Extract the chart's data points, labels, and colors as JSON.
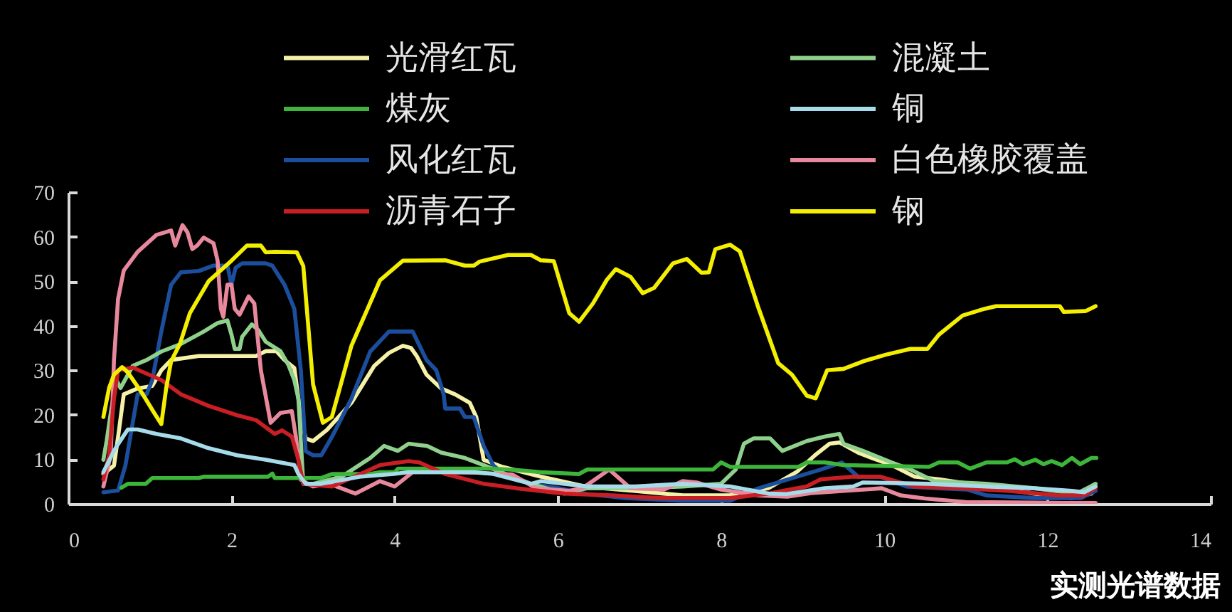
{
  "chart_data": {
    "type": "line",
    "annotations": [
      "实测光谱数据"
    ],
    "xlim": [
      0,
      14
    ],
    "xticks": [
      0,
      2,
      4,
      6,
      8,
      10,
      12,
      14
    ],
    "ylim": [
      0,
      70
    ],
    "yticks": [
      0,
      10,
      20,
      30,
      40,
      50,
      60,
      70
    ],
    "legend": "top",
    "line_style": "solid",
    "series": [
      {
        "name": "光滑红瓦",
        "color": "#f6f1a8",
        "x": [
          0.43,
          0.56,
          0.61,
          0.68,
          0.85,
          1.03,
          1.14,
          1.26,
          1.6,
          2.0,
          2.3,
          2.42,
          2.55,
          2.65,
          2.77,
          2.85,
          2.91,
          3.0,
          3.17,
          3.47,
          3.75,
          3.93,
          4.1,
          4.2,
          4.27,
          4.39,
          4.57,
          4.74,
          4.92,
          5.0,
          5.09,
          5.32,
          5.79,
          6.36,
          6.95,
          7.53,
          8.11,
          8.58,
          8.93,
          9.15,
          9.33,
          9.45,
          9.68,
          9.85,
          10.09,
          10.37,
          10.67,
          11.25,
          11.84,
          12.3,
          12.54
        ],
        "values": [
          6.7,
          8.6,
          15,
          24.6,
          25.9,
          26.5,
          30,
          32.3,
          33.2,
          33.2,
          33.2,
          34.3,
          34.3,
          32.3,
          30.5,
          19.5,
          14.7,
          14.1,
          16.6,
          22.7,
          31,
          33.9,
          35.5,
          35,
          33.2,
          29,
          25.9,
          24.6,
          22.7,
          19.5,
          9.9,
          8.3,
          6.1,
          3.8,
          2.9,
          1.9,
          1.9,
          3.5,
          7.2,
          10.9,
          13.5,
          13.8,
          11.5,
          10.3,
          8.7,
          6.1,
          5.5,
          3.9,
          2.3,
          1.3,
          2.3
        ]
      },
      {
        "name": "风化红瓦",
        "color": "#1b4f9e",
        "x": [
          0.43,
          0.61,
          0.7,
          0.76,
          0.85,
          0.96,
          1.03,
          1.14,
          1.26,
          1.38,
          1.6,
          1.78,
          1.95,
          2.0,
          2.05,
          2.13,
          2.42,
          2.5,
          2.65,
          2.77,
          2.85,
          2.91,
          3.0,
          3.1,
          3.23,
          3.47,
          3.7,
          3.93,
          4.04,
          4.22,
          4.39,
          4.51,
          4.6,
          4.62,
          4.8,
          4.86,
          4.97,
          5.09,
          5.21,
          5.32,
          5.67,
          6.01,
          6.36,
          6.83,
          7.53,
          8.11,
          8.46,
          8.93,
          9.22,
          9.48,
          9.68,
          9.95,
          10.27,
          10.67,
          11.02,
          11.25,
          11.84,
          12.41,
          12.59
        ],
        "values": [
          2.6,
          3,
          8.6,
          15,
          24.6,
          24.6,
          27.8,
          38.7,
          49.2,
          52,
          52.3,
          53.5,
          53.5,
          49.2,
          53,
          54,
          54,
          53.5,
          49.2,
          43.8,
          30,
          11.8,
          10.9,
          10.9,
          15,
          23.6,
          34.2,
          38.7,
          38.7,
          38.7,
          32.3,
          30,
          24.6,
          21.4,
          21.4,
          19.5,
          19.5,
          13,
          8.6,
          7,
          4.5,
          3.5,
          2.2,
          1.3,
          0.7,
          0.7,
          3.5,
          6.1,
          7.7,
          9.3,
          6.1,
          6.1,
          3.9,
          3.5,
          3.2,
          1.9,
          1.3,
          1.3,
          2.9
        ]
      },
      {
        "name": "混凝土",
        "color": "#8fd08c",
        "x": [
          0.43,
          0.47,
          0.52,
          0.59,
          0.64,
          0.7,
          0.79,
          0.96,
          1.14,
          1.38,
          1.66,
          1.83,
          1.95,
          2.0,
          2.04,
          2.1,
          2.13,
          2.25,
          2.33,
          2.42,
          2.6,
          2.7,
          2.77,
          2.82,
          2.88,
          3.0,
          3.35,
          3.7,
          3.87,
          4.04,
          4.17,
          4.4,
          4.57,
          4.86,
          5.09,
          5.44,
          5.67,
          6.08,
          6.36,
          6.95,
          7.53,
          8.0,
          8.18,
          8.28,
          8.4,
          8.6,
          8.75,
          8.9,
          9.05,
          9.27,
          9.45,
          9.5,
          9.74,
          10.09,
          10.32,
          10.61,
          11.25,
          11.84,
          12.36,
          12.59
        ],
        "values": [
          9.9,
          14.1,
          20.4,
          27.8,
          26,
          28,
          31,
          32.3,
          34.2,
          35.9,
          38.7,
          40.6,
          41.2,
          38,
          34.8,
          34.8,
          37.5,
          40.3,
          39,
          36.4,
          34.3,
          31.1,
          27.8,
          23.6,
          4.5,
          4.5,
          6.1,
          10.3,
          13,
          11.9,
          13.5,
          13,
          11.5,
          10.3,
          8.7,
          6.1,
          4.5,
          2.3,
          3.5,
          3.5,
          3.9,
          4.5,
          7.7,
          13.5,
          14.7,
          14.7,
          11.9,
          13,
          14.1,
          15.1,
          15.7,
          13.5,
          11.9,
          9.3,
          7.7,
          5.1,
          4.5,
          3.5,
          2.3,
          4.5
        ]
      },
      {
        "name": "白色橡胶覆盖",
        "color": "#e8889c",
        "x": [
          0.43,
          0.52,
          0.56,
          0.61,
          0.68,
          0.85,
          1.08,
          1.26,
          1.31,
          1.4,
          1.46,
          1.52,
          1.58,
          1.66,
          1.78,
          1.83,
          1.87,
          1.9,
          1.95,
          2.0,
          2.04,
          2.1,
          2.21,
          2.28,
          2.36,
          2.48,
          2.6,
          2.74,
          2.79,
          2.85,
          3.0,
          3.2,
          3.52,
          3.82,
          4.0,
          4.22,
          4.6,
          5.0,
          5.44,
          5.73,
          6.14,
          6.3,
          6.63,
          6.89,
          7.3,
          7.53,
          7.7,
          8.0,
          8.46,
          8.81,
          9.1,
          9.74,
          9.97,
          10.2,
          10.5,
          11.0,
          11.6,
          12.2,
          12.59
        ],
        "values": [
          3.9,
          10.9,
          32.3,
          46,
          52.4,
          56.6,
          60.4,
          61.4,
          58,
          62.6,
          61,
          57.2,
          58,
          59.8,
          58.5,
          54.6,
          43.8,
          42,
          49.2,
          49.2,
          43.8,
          42.5,
          46.6,
          45,
          30,
          18.2,
          20.4,
          20.8,
          15,
          5.4,
          3.9,
          4.5,
          2.3,
          5.1,
          3.9,
          7.1,
          7.1,
          7,
          6.6,
          3.5,
          2.9,
          3.5,
          7.7,
          3.5,
          3.2,
          5.1,
          4.8,
          3.2,
          1.9,
          1.6,
          2.4,
          3.2,
          3.5,
          1.9,
          1.2,
          0.4,
          0.3,
          0.2,
          0.2
        ]
      },
      {
        "name": "煤灰",
        "color": "#3db53a",
        "x": [
          0.65,
          0.73,
          0.95,
          1.03,
          1.6,
          1.66,
          2.45,
          2.5,
          2.53,
          3.1,
          3.23,
          3.7,
          3.82,
          4.0,
          4.04,
          5.21,
          5.5,
          5.79,
          6.26,
          6.36,
          7.9,
          8.0,
          8.11,
          8.95,
          9.05,
          9.27,
          9.5,
          10.55,
          10.67,
          10.9,
          11.05,
          11.25,
          11.5,
          11.6,
          11.7,
          11.85,
          11.95,
          12.05,
          12.18,
          12.3,
          12.4,
          12.54,
          12.6
        ],
        "values": [
          3.6,
          4.5,
          4.5,
          5.8,
          5.8,
          6.1,
          6.1,
          6.8,
          5.8,
          5.8,
          6.7,
          6.7,
          7.1,
          7.1,
          7.9,
          7.9,
          7.6,
          7.1,
          6.7,
          7.7,
          7.7,
          9.3,
          8.3,
          8.3,
          9.3,
          9.3,
          8.7,
          8.3,
          9.3,
          9.3,
          7.9,
          9.3,
          9.3,
          10,
          8.9,
          9.9,
          8.9,
          9.6,
          8.7,
          10.3,
          8.9,
          10.3,
          10.3
        ]
      },
      {
        "name": "沥青石子",
        "color": "#c81e24",
        "x": [
          0.43,
          0.5,
          0.56,
          0.61,
          0.79,
          1.14,
          1.38,
          1.72,
          2.07,
          2.3,
          2.53,
          2.62,
          2.74,
          2.82,
          2.88,
          3.23,
          3.58,
          3.82,
          4.17,
          4.3,
          4.62,
          5.09,
          5.49,
          6.08,
          6.66,
          7.24,
          8.11,
          8.58,
          9.05,
          9.22,
          9.62,
          9.95,
          10.37,
          10.96,
          11.54,
          12.12,
          12.45,
          12.59
        ],
        "values": [
          5.5,
          10.9,
          23.6,
          30,
          30.6,
          27.8,
          24.6,
          22,
          19.9,
          18.8,
          15.7,
          16.5,
          15.1,
          9.9,
          4.5,
          3.9,
          6.7,
          8.7,
          9.6,
          9.3,
          6.7,
          4.5,
          3.5,
          2.3,
          1.9,
          1.3,
          1.3,
          2.3,
          3.9,
          5.5,
          6.1,
          6.1,
          3.9,
          3.5,
          2.9,
          1.9,
          1.9,
          3.5
        ]
      },
      {
        "name": "铜",
        "color": "#a6dbe9",
        "x": [
          0.43,
          0.56,
          0.61,
          0.73,
          0.85,
          1.08,
          1.38,
          1.72,
          2.07,
          2.42,
          2.77,
          2.82,
          2.91,
          3.1,
          3.58,
          3.99,
          4.17,
          4.97,
          5.21,
          5.67,
          5.79,
          6.36,
          6.95,
          7.53,
          8.11,
          8.58,
          8.8,
          9.27,
          9.62,
          9.74,
          10.55,
          11.25,
          11.84,
          12.3,
          12.45,
          12.59
        ],
        "values": [
          7.1,
          11.9,
          13.4,
          16.7,
          16.7,
          15.7,
          14.7,
          12.5,
          10.9,
          9.9,
          8.7,
          6.7,
          4.5,
          4.5,
          6.1,
          6.7,
          7.1,
          7.1,
          6.7,
          4.5,
          5.1,
          3.9,
          3.9,
          4.5,
          3.9,
          2.3,
          2.2,
          3.5,
          3.9,
          4.8,
          4.5,
          3.9,
          3.5,
          2.9,
          2.6,
          3.9
        ]
      },
      {
        "name": "钢",
        "color": "#f4ef00",
        "x": [
          0.43,
          0.5,
          0.56,
          0.66,
          0.73,
          0.91,
          1.05,
          1.14,
          1.2,
          1.26,
          1.37,
          1.49,
          1.72,
          2.0,
          2.19,
          2.36,
          2.42,
          2.53,
          2.8,
          2.88,
          3.0,
          3.12,
          3.23,
          3.47,
          3.82,
          4.1,
          4.62,
          4.86,
          4.97,
          5.04,
          5.39,
          5.67,
          5.79,
          5.95,
          6.14,
          6.26,
          6.43,
          6.6,
          6.71,
          6.89,
          7.04,
          7.18,
          7.41,
          7.58,
          7.76,
          7.85,
          7.93,
          8.11,
          8.23,
          8.46,
          8.7,
          8.87,
          9.05,
          9.16,
          9.3,
          9.5,
          9.74,
          10.02,
          10.32,
          10.53,
          10.67,
          10.96,
          11.23,
          11.37,
          12.15,
          12.2,
          12.47,
          12.59
        ],
        "values": [
          19.5,
          26,
          29,
          30.7,
          29.5,
          24.7,
          20.5,
          17.9,
          26,
          32,
          36,
          42.8,
          50,
          54.6,
          58,
          58,
          56.5,
          56.6,
          56.5,
          53.4,
          26.8,
          18.2,
          19.5,
          35.5,
          50.2,
          54.6,
          54.7,
          53.5,
          53.5,
          54.4,
          55.9,
          55.9,
          54.7,
          54.5,
          42.8,
          40.9,
          45,
          50.3,
          52.7,
          51,
          47.3,
          48.5,
          54,
          55,
          51.9,
          52,
          57.2,
          58.2,
          56.7,
          43.9,
          31.6,
          29,
          24.3,
          23.7,
          30,
          30.3,
          32,
          33.5,
          34.8,
          34.8,
          38,
          42.3,
          43.8,
          44.4,
          44.4,
          43.1,
          43.3,
          44.4
        ]
      }
    ]
  }
}
